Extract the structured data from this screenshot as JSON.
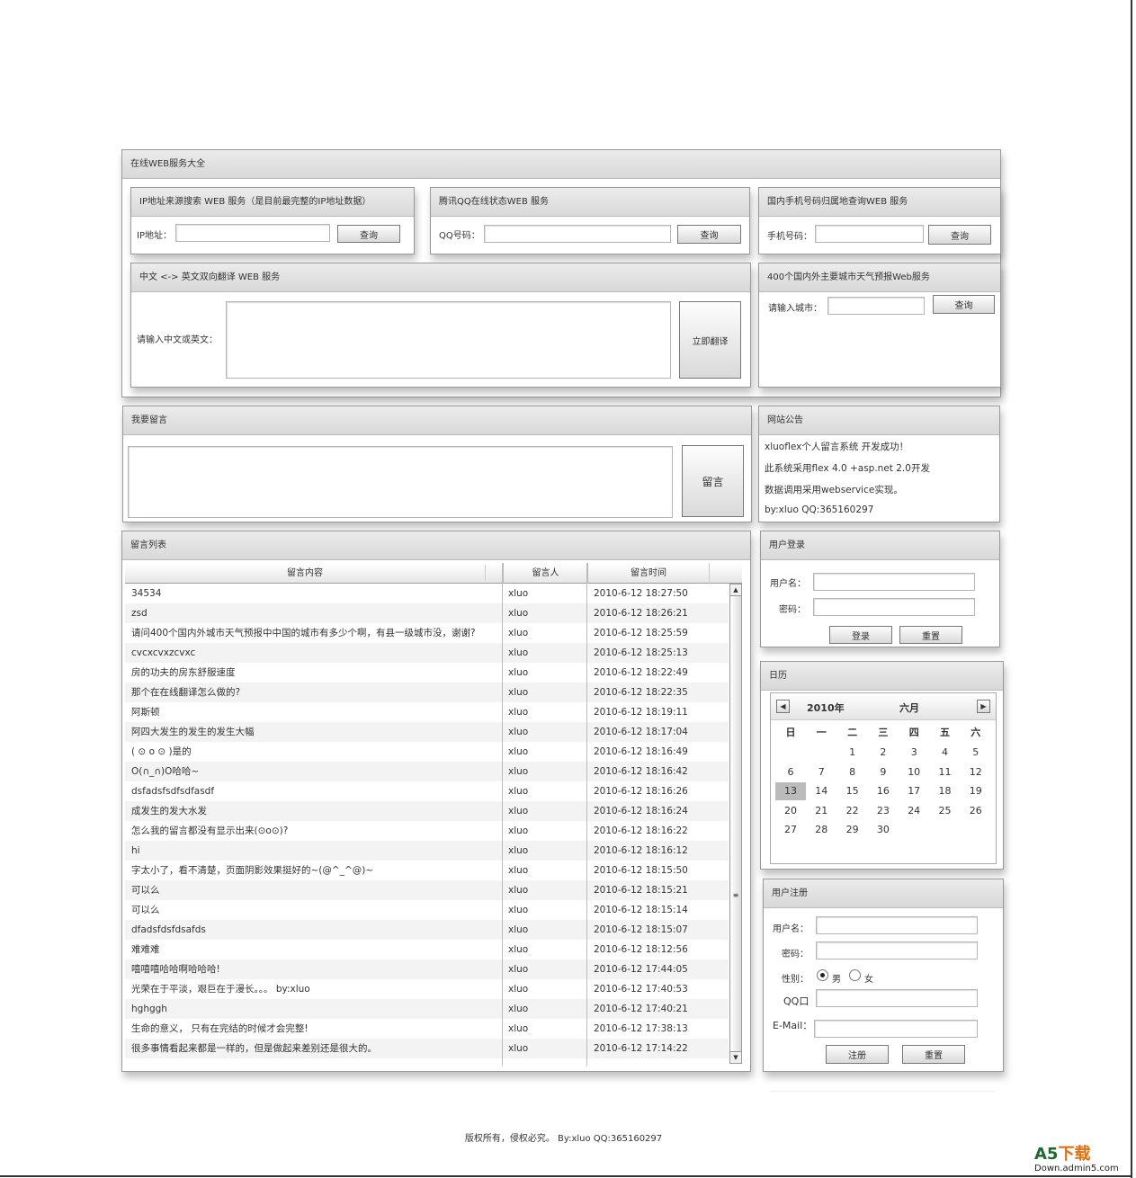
{
  "web_services": {
    "title": "在线WEB服务大全",
    "ip": {
      "title": "IP地址来源搜索 WEB 服务（是目前最完整的IP地址数据）",
      "label": "IP地址：",
      "button": "查询"
    },
    "qq": {
      "title": "腾讯QQ在线状态WEB 服务",
      "label": "QQ号码：",
      "button": "查询"
    },
    "mobile": {
      "title": "国内手机号码归属地查询WEB 服务",
      "label": "手机号码：",
      "button": "查询"
    },
    "translate": {
      "title": "中文 <-> 英文双向翻译 WEB 服务",
      "label": "请输入中文或英文：",
      "button": "立即翻译"
    },
    "weather": {
      "title": "400个国内外主要城市天气预报Web服务",
      "label": "请输入城市：",
      "button": "查询"
    }
  },
  "post_message": {
    "title": "我要留言",
    "button": "留言"
  },
  "notice": {
    "title": "网站公告",
    "lines": [
      "xluoflex个人留言系统 开发成功！",
      "此系统采用flex 4.0 +asp.net 2.0开发",
      "数据调用采用webservice实现。",
      "by:xluo QQ:365160297"
    ]
  },
  "message_list": {
    "title": "留言列表",
    "columns": [
      "留言内容",
      "留言人",
      "留言时间"
    ],
    "rows": [
      [
        "34534",
        "xluo",
        "2010-6-12 18:27:50"
      ],
      [
        "zsd",
        "xluo",
        "2010-6-12 18:26:21"
      ],
      [
        "请问400个国内外城市天气预报中中国的城市有多少个啊，有县一级城市没，谢谢?",
        "xluo",
        "2010-6-12 18:25:59"
      ],
      [
        "cvcxcvxzcvxc",
        "xluo",
        "2010-6-12 18:25:13"
      ],
      [
        "房的功夫的房东舒服速度",
        "xluo",
        "2010-6-12 18:22:49"
      ],
      [
        "那个在在线翻译怎么做的?",
        "xluo",
        "2010-6-12 18:22:35"
      ],
      [
        "阿斯顿",
        "xluo",
        "2010-6-12 18:19:11"
      ],
      [
        "阿四大发生的发生的发生大幅",
        "xluo",
        "2010-6-12 18:17:04"
      ],
      [
        "( ⊙ o ⊙ )是的",
        "xluo",
        "2010-6-12 18:16:49"
      ],
      [
        "O(∩_∩)O哈哈~",
        "xluo",
        "2010-6-12 18:16:42"
      ],
      [
        "dsfadsfsdfsdfasdf",
        "xluo",
        "2010-6-12 18:16:26"
      ],
      [
        "成发生的发大水发",
        "xluo",
        "2010-6-12 18:16:24"
      ],
      [
        "怎么我的留言都没有显示出来(⊙o⊙)?",
        "xluo",
        "2010-6-12 18:16:22"
      ],
      [
        "hi",
        "xluo",
        "2010-6-12 18:16:12"
      ],
      [
        "字太小了，看不清楚，页面阴影效果挺好的~(@^_^@)~",
        "xluo",
        "2010-6-12 18:15:50"
      ],
      [
        "可以么",
        "xluo",
        "2010-6-12 18:15:21"
      ],
      [
        "可以么",
        "xluo",
        "2010-6-12 18:15:14"
      ],
      [
        "dfadsfdsfdsafds",
        "xluo",
        "2010-6-12 18:15:07"
      ],
      [
        "难难难",
        "xluo",
        "2010-6-12 18:12:56"
      ],
      [
        "嘻嘻嘻哈哈啊哈哈哈!",
        "xluo",
        "2010-6-12 17:44:05"
      ],
      [
        "光荣在于平淡，艰巨在于漫长。。。 by:xluo",
        "xluo",
        "2010-6-12 17:40:53"
      ],
      [
        "hghggh",
        "xluo",
        "2010-6-12 17:40:21"
      ],
      [
        "生命的意义，   只有在完结的时候才会完整!",
        "xluo",
        "2010-6-12 17:38:13"
      ],
      [
        "很多事情看起来都是一样的，但是做起来差别还是很大的。",
        "xluo",
        "2010-6-12 17:14:22"
      ]
    ]
  },
  "login": {
    "title": "用户登录",
    "username_label": "用户名：",
    "password_label": "密码：",
    "login_button": "登录",
    "reset_button": "重置"
  },
  "calendar": {
    "title": "日历",
    "year": "2010年",
    "month": "六月",
    "weekdays": [
      "日",
      "一",
      "二",
      "三",
      "四",
      "五",
      "六"
    ],
    "first_weekday": 2,
    "days": 30,
    "selected": 13
  },
  "register": {
    "title": "用户注册",
    "username_label": "用户名：",
    "password_label": "密码：",
    "gender_label": "性别：",
    "male": "男",
    "female": "女",
    "gender_selected": "男",
    "qq_label": "QQ口",
    "email_label": "E-Mail：",
    "register_button": "注册",
    "reset_button": "重置"
  },
  "footer": {
    "text": "版权所有，侵权必究。 By:xluo QQ:365160297"
  },
  "watermark": {
    "logo": "A5下载",
    "domain": "Down.admin5.com"
  }
}
